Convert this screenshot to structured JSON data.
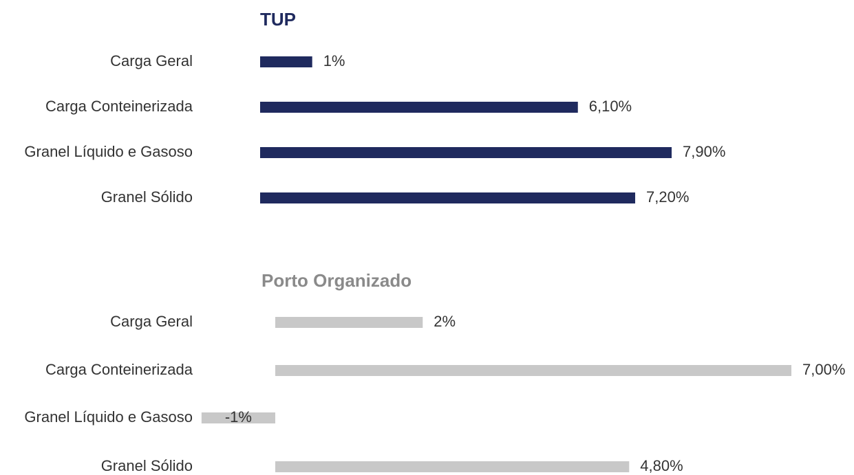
{
  "chart_data": [
    {
      "type": "bar",
      "title": "TUP",
      "color": "#1f2a5e",
      "categories": [
        "Carga Geral",
        "Carga Conteinerizada",
        "Granel Líquido e Gasoso",
        "Granel Sólido"
      ],
      "values": [
        1,
        6.1,
        7.9,
        7.2
      ],
      "value_labels": [
        "1%",
        "6,10%",
        "7,90%",
        "7,20%"
      ]
    },
    {
      "type": "bar",
      "title": "Porto Organizado",
      "color": "#c8c8c8",
      "categories": [
        "Carga Geral",
        "Carga Conteinerizada",
        "Granel Líquido e Gasoso",
        "Granel Sólido"
      ],
      "values": [
        2,
        7,
        -1,
        4.8
      ],
      "value_labels": [
        "2%",
        "7,00%",
        "-1%",
        "4,80%"
      ]
    }
  ]
}
